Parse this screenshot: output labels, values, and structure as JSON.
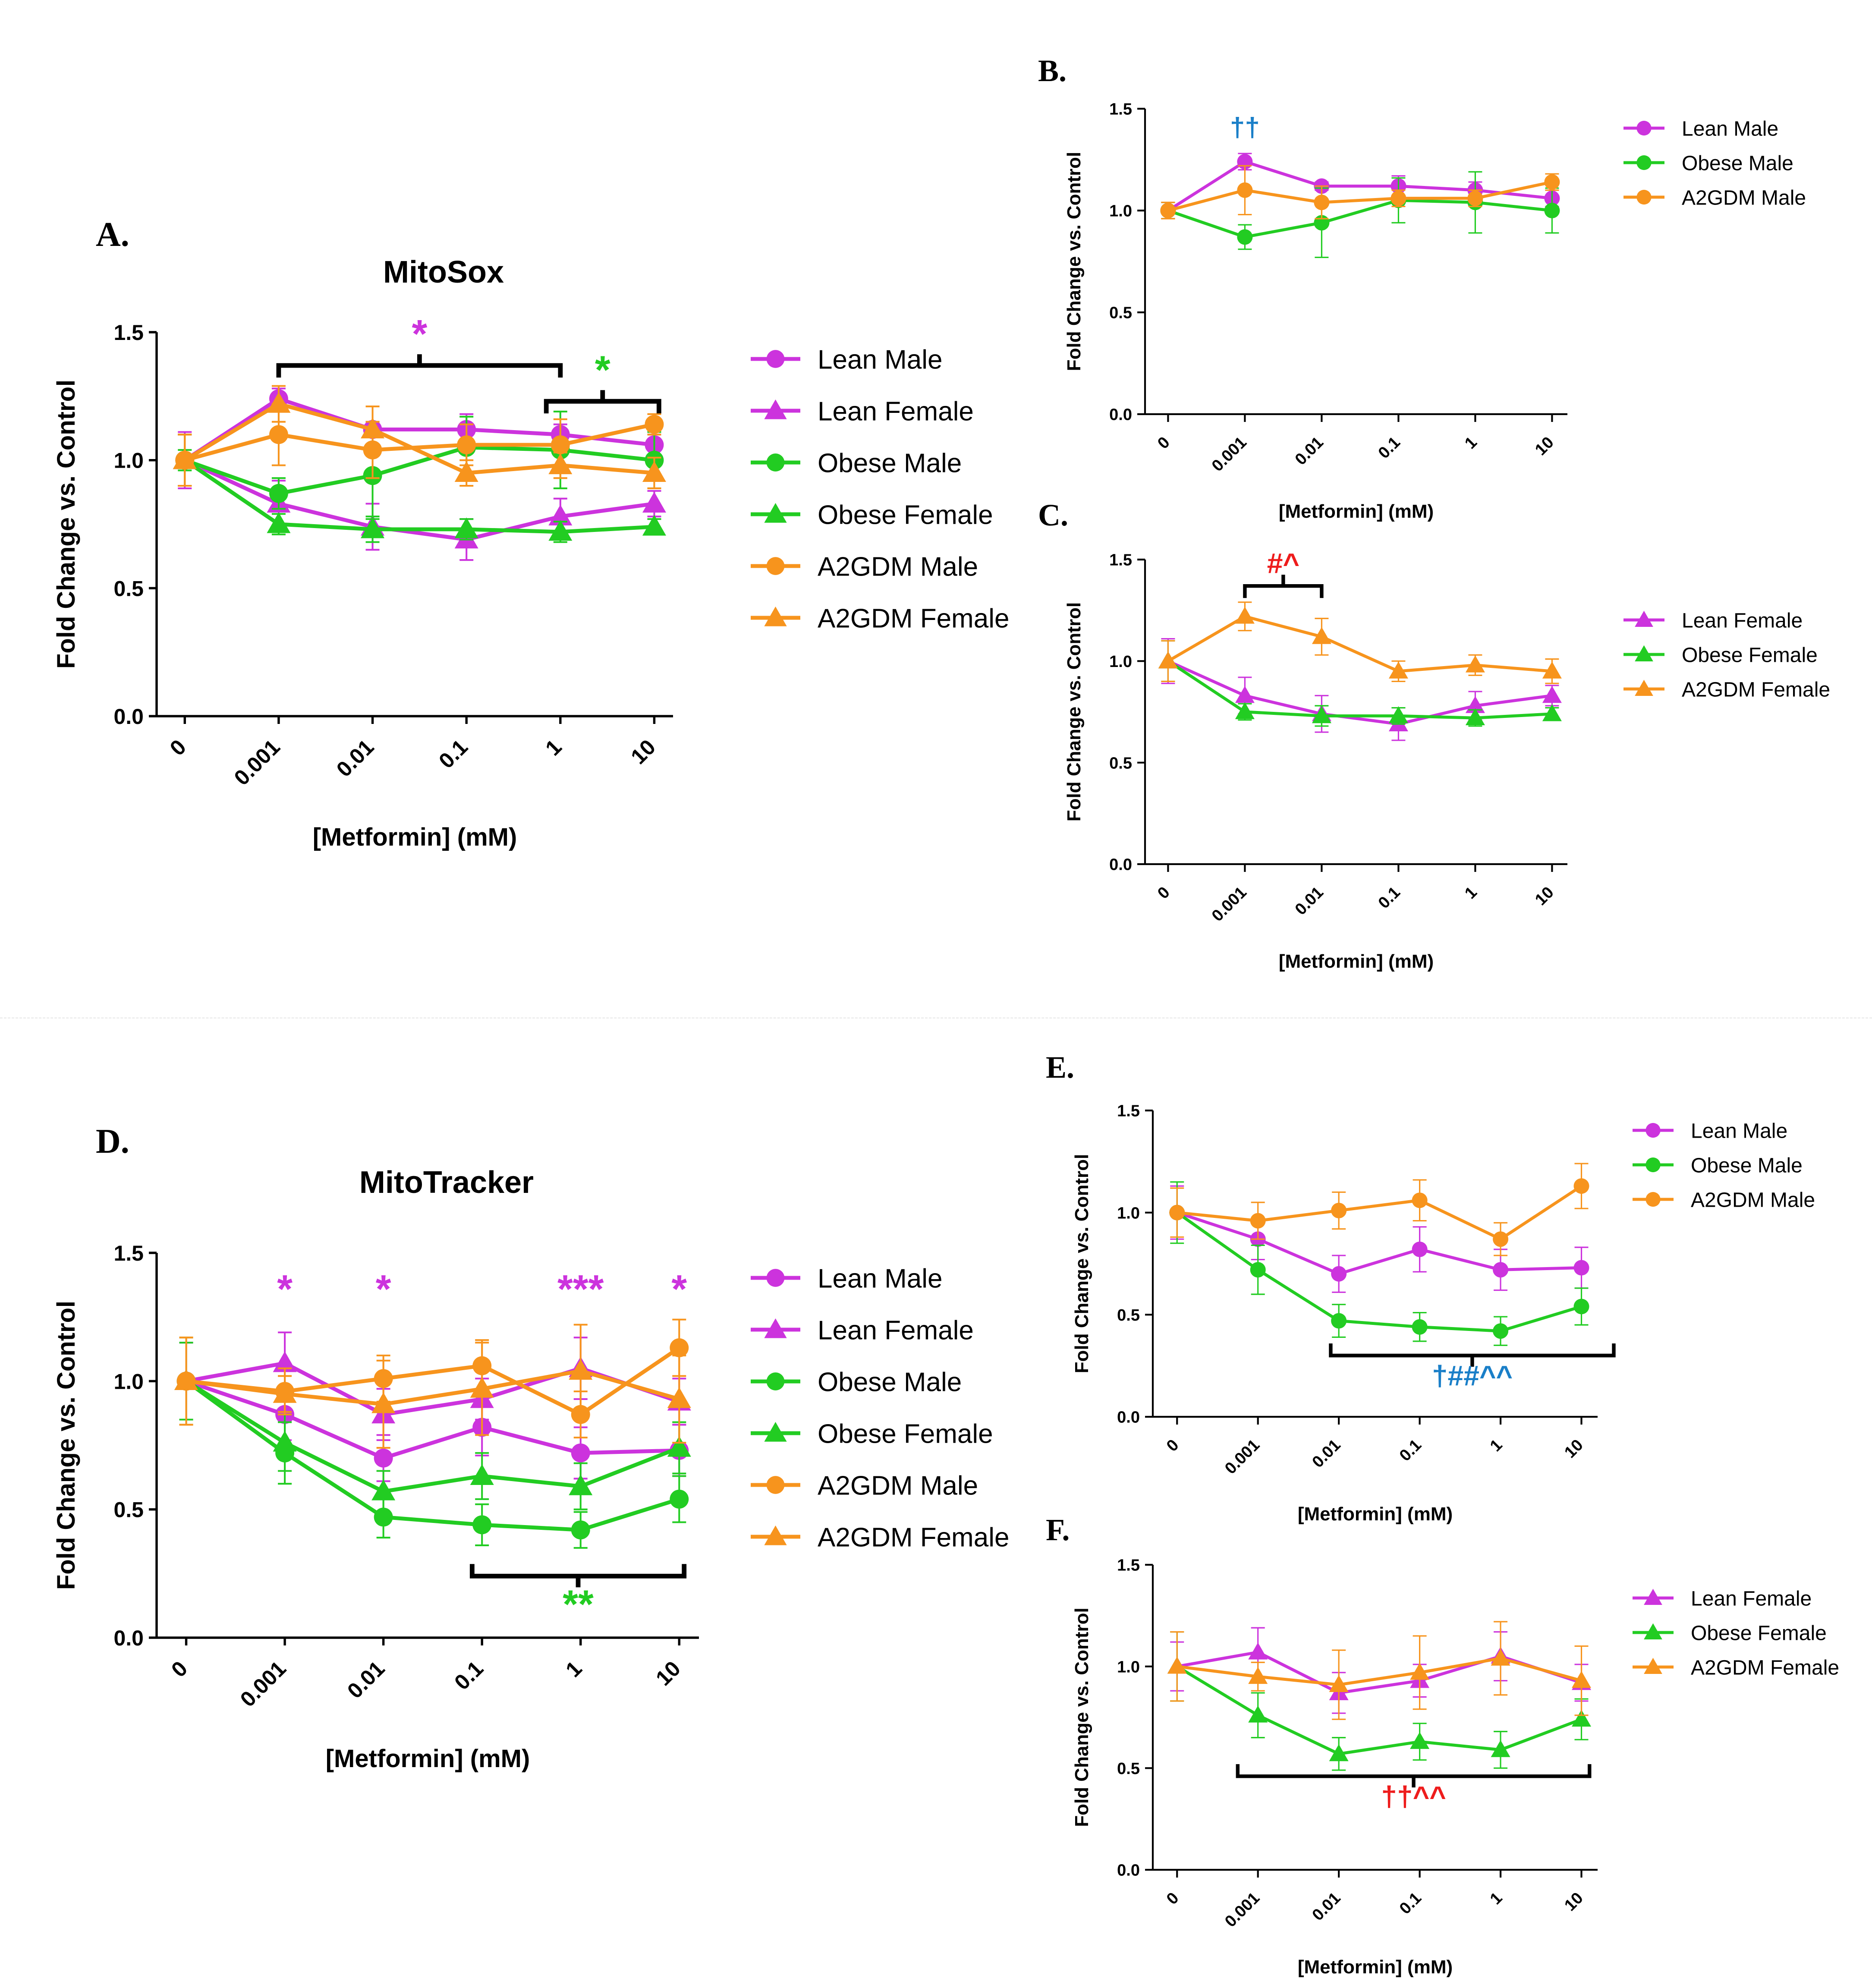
{
  "colors": {
    "lean": "#cc33dd",
    "obese": "#22cc22",
    "a2gdm": "#f7941d",
    "blue": "#1a7fc8",
    "red": "#ee1c1c",
    "axis": "#000000"
  },
  "x_categories": [
    "0",
    "0.001",
    "0.01",
    "0.1",
    "1",
    "10"
  ],
  "chart_data": [
    {
      "id": "A",
      "type": "line",
      "panel_label": "A.",
      "title": "MitoSox",
      "xlabel": "[Metformin] (mM)",
      "ylabel": "Fold Change vs. Control",
      "ylim": [
        0,
        1.5
      ],
      "yticks": [
        "0.0",
        "0.5",
        "1.0",
        "1.5"
      ],
      "legend_position": "right",
      "series": [
        {
          "name": "Lean Male",
          "color": "lean",
          "marker": "circle",
          "values": [
            1.0,
            1.24,
            1.12,
            1.12,
            1.1,
            1.06
          ],
          "errors": [
            0.1,
            0.04,
            0.03,
            0.06,
            0.04,
            0.04
          ]
        },
        {
          "name": "Lean Female",
          "color": "lean",
          "marker": "triangle",
          "values": [
            1.0,
            0.83,
            0.74,
            0.69,
            0.78,
            0.83
          ],
          "errors": [
            0.11,
            0.09,
            0.09,
            0.08,
            0.07,
            0.05
          ]
        },
        {
          "name": "Obese Male",
          "color": "obese",
          "marker": "circle",
          "values": [
            1.0,
            0.87,
            0.94,
            1.05,
            1.04,
            1.0
          ],
          "errors": [
            0.04,
            0.06,
            0.17,
            0.12,
            0.15,
            0.11
          ]
        },
        {
          "name": "Obese Female",
          "color": "obese",
          "marker": "triangle",
          "values": [
            1.0,
            0.75,
            0.73,
            0.73,
            0.72,
            0.74
          ],
          "errors": [
            0.1,
            0.04,
            0.05,
            0.04,
            0.04,
            0.03
          ]
        },
        {
          "name": "A2GDM Male",
          "color": "a2gdm",
          "marker": "circle",
          "values": [
            1.0,
            1.1,
            1.04,
            1.06,
            1.06,
            1.14
          ],
          "errors": [
            0.1,
            0.12,
            0.11,
            0.08,
            0.1,
            0.04
          ]
        },
        {
          "name": "A2GDM Female",
          "color": "a2gdm",
          "marker": "triangle",
          "values": [
            1.0,
            1.22,
            1.12,
            0.95,
            0.98,
            0.95
          ],
          "errors": [
            0.1,
            0.07,
            0.09,
            0.05,
            0.05,
            0.06
          ]
        }
      ],
      "brackets": [
        {
          "from": 1,
          "to": 4,
          "y": 1.37,
          "label": "*",
          "color": "lean"
        },
        {
          "from": 3.85,
          "to": 5.05,
          "y": 1.23,
          "label": "*",
          "color": "obese"
        }
      ],
      "annotations": []
    },
    {
      "id": "B",
      "type": "line",
      "panel_label": "B.",
      "title": "",
      "xlabel": "[Metformin] (mM)",
      "ylabel": "Fold Change vs. Control",
      "ylim": [
        0,
        1.5
      ],
      "yticks": [
        "0.0",
        "0.5",
        "1.0",
        "1.5"
      ],
      "legend_position": "right",
      "series": [
        {
          "name": "Lean Male",
          "color": "lean",
          "marker": "circle",
          "values": [
            1.0,
            1.24,
            1.12,
            1.12,
            1.1,
            1.06
          ],
          "errors": [
            0.04,
            0.04,
            0.02,
            0.05,
            0.04,
            0.04
          ]
        },
        {
          "name": "Obese Male",
          "color": "obese",
          "marker": "circle",
          "values": [
            1.0,
            0.87,
            0.94,
            1.05,
            1.04,
            1.0
          ],
          "errors": [
            0.04,
            0.06,
            0.17,
            0.11,
            0.15,
            0.11
          ]
        },
        {
          "name": "A2GDM Male",
          "color": "a2gdm",
          "marker": "circle",
          "values": [
            1.0,
            1.1,
            1.04,
            1.06,
            1.06,
            1.14
          ],
          "errors": [
            0.04,
            0.12,
            0.08,
            0.04,
            0.04,
            0.04
          ]
        }
      ],
      "brackets": [],
      "annotations": [
        {
          "x": 1,
          "y": 1.41,
          "label": "††",
          "color": "blue"
        }
      ]
    },
    {
      "id": "C",
      "type": "line",
      "panel_label": "C.",
      "title": "",
      "xlabel": "[Metformin] (mM)",
      "ylabel": "Fold Change vs. Control",
      "ylim": [
        0,
        1.5
      ],
      "yticks": [
        "0.0",
        "0.5",
        "1.0",
        "1.5"
      ],
      "legend_position": "right",
      "series": [
        {
          "name": "Lean Female",
          "color": "lean",
          "marker": "triangle",
          "values": [
            1.0,
            0.83,
            0.74,
            0.69,
            0.78,
            0.83
          ],
          "errors": [
            0.11,
            0.09,
            0.09,
            0.08,
            0.07,
            0.05
          ]
        },
        {
          "name": "Obese Female",
          "color": "obese",
          "marker": "triangle",
          "values": [
            1.0,
            0.75,
            0.73,
            0.73,
            0.72,
            0.74
          ],
          "errors": [
            0.1,
            0.04,
            0.05,
            0.04,
            0.04,
            0.03
          ]
        },
        {
          "name": "A2GDM Female",
          "color": "a2gdm",
          "marker": "triangle",
          "values": [
            1.0,
            1.22,
            1.12,
            0.95,
            0.98,
            0.95
          ],
          "errors": [
            0.1,
            0.07,
            0.09,
            0.05,
            0.05,
            0.06
          ]
        }
      ],
      "brackets": [
        {
          "from": 1,
          "to": 2,
          "y": 1.37,
          "label": "#^",
          "color": "red"
        }
      ],
      "annotations": []
    },
    {
      "id": "D",
      "type": "line",
      "panel_label": "D.",
      "title": "MitoTracker",
      "xlabel": "[Metformin] (mM)",
      "ylabel": "Fold Change vs. Control",
      "ylim": [
        0,
        1.5
      ],
      "yticks": [
        "0.0",
        "0.5",
        "1.0",
        "1.5"
      ],
      "legend_position": "right",
      "series": [
        {
          "name": "Lean Male",
          "color": "lean",
          "marker": "circle",
          "values": [
            1.0,
            0.87,
            0.7,
            0.82,
            0.72,
            0.73
          ],
          "errors": [
            0.15,
            0.1,
            0.09,
            0.11,
            0.1,
            0.1
          ]
        },
        {
          "name": "Lean Female",
          "color": "lean",
          "marker": "triangle",
          "values": [
            1.0,
            1.07,
            0.87,
            0.93,
            1.05,
            0.92
          ],
          "errors": [
            0.15,
            0.12,
            0.1,
            0.08,
            0.12,
            0.09
          ]
        },
        {
          "name": "Obese Male",
          "color": "obese",
          "marker": "circle",
          "values": [
            1.0,
            0.72,
            0.47,
            0.44,
            0.42,
            0.54
          ],
          "errors": [
            0.15,
            0.12,
            0.08,
            0.08,
            0.07,
            0.09
          ]
        },
        {
          "name": "Obese Female",
          "color": "obese",
          "marker": "triangle",
          "values": [
            1.0,
            0.76,
            0.57,
            0.63,
            0.59,
            0.74
          ],
          "errors": [
            0.17,
            0.11,
            0.08,
            0.09,
            0.09,
            0.1
          ]
        },
        {
          "name": "A2GDM Male",
          "color": "a2gdm",
          "marker": "circle",
          "values": [
            1.0,
            0.96,
            1.01,
            1.06,
            0.87,
            1.13
          ],
          "errors": [
            0.17,
            0.09,
            0.09,
            0.1,
            0.09,
            0.11
          ]
        },
        {
          "name": "A2GDM Female",
          "color": "a2gdm",
          "marker": "triangle",
          "values": [
            1.0,
            0.95,
            0.91,
            0.97,
            1.04,
            0.93
          ],
          "errors": [
            0.17,
            0.07,
            0.17,
            0.18,
            0.18,
            0.17
          ]
        }
      ],
      "brackets": [
        {
          "from": 2.9,
          "to": 5.05,
          "y": 0.24,
          "label": "**",
          "color": "obese",
          "down": true
        }
      ],
      "annotations": [
        {
          "x": 1,
          "y": 1.36,
          "label": "*",
          "color": "lean"
        },
        {
          "x": 2,
          "y": 1.36,
          "label": "*",
          "color": "lean"
        },
        {
          "x": 4,
          "y": 1.36,
          "label": "***",
          "color": "lean"
        },
        {
          "x": 5,
          "y": 1.36,
          "label": "*",
          "color": "lean"
        }
      ]
    },
    {
      "id": "E",
      "type": "line",
      "panel_label": "E.",
      "title": "",
      "xlabel": "[Metformin] (mM)",
      "ylabel": "Fold Change vs. Control",
      "ylim": [
        0,
        1.5
      ],
      "yticks": [
        "0.0",
        "0.5",
        "1.0",
        "1.5"
      ],
      "legend_position": "right",
      "series": [
        {
          "name": "Lean Male",
          "color": "lean",
          "marker": "circle",
          "values": [
            1.0,
            0.87,
            0.7,
            0.82,
            0.72,
            0.73
          ],
          "errors": [
            0.13,
            0.1,
            0.09,
            0.11,
            0.1,
            0.1
          ]
        },
        {
          "name": "Obese Male",
          "color": "obese",
          "marker": "circle",
          "values": [
            1.0,
            0.72,
            0.47,
            0.44,
            0.42,
            0.54
          ],
          "errors": [
            0.15,
            0.12,
            0.08,
            0.07,
            0.07,
            0.09
          ]
        },
        {
          "name": "A2GDM Male",
          "color": "a2gdm",
          "marker": "circle",
          "values": [
            1.0,
            0.96,
            1.01,
            1.06,
            0.87,
            1.13
          ],
          "errors": [
            0.12,
            0.09,
            0.09,
            0.1,
            0.08,
            0.11
          ]
        }
      ],
      "brackets": [
        {
          "from": 1.9,
          "to": 5.4,
          "y": 0.3,
          "label": "†##^^",
          "color": "blue",
          "down": true
        }
      ],
      "annotations": []
    },
    {
      "id": "F",
      "type": "line",
      "panel_label": "F.",
      "title": "",
      "xlabel": "[Metformin] (mM)",
      "ylabel": "Fold Change vs. Control",
      "ylim": [
        0,
        1.5
      ],
      "yticks": [
        "0.0",
        "0.5",
        "1.0",
        "1.5"
      ],
      "legend_position": "right",
      "series": [
        {
          "name": "Lean Female",
          "color": "lean",
          "marker": "triangle",
          "values": [
            1.0,
            1.07,
            0.87,
            0.93,
            1.05,
            0.92
          ],
          "errors": [
            0.12,
            0.12,
            0.1,
            0.08,
            0.12,
            0.09
          ]
        },
        {
          "name": "Obese Female",
          "color": "obese",
          "marker": "triangle",
          "values": [
            1.0,
            0.76,
            0.57,
            0.63,
            0.59,
            0.74
          ],
          "errors": [
            0.17,
            0.11,
            0.08,
            0.09,
            0.09,
            0.1
          ]
        },
        {
          "name": "A2GDM Female",
          "color": "a2gdm",
          "marker": "triangle",
          "values": [
            1.0,
            0.95,
            0.91,
            0.97,
            1.04,
            0.93
          ],
          "errors": [
            0.17,
            0.07,
            0.17,
            0.18,
            0.18,
            0.17
          ]
        }
      ],
      "brackets": [
        {
          "from": 0.75,
          "to": 5.1,
          "y": 0.46,
          "label": "††^^",
          "color": "red",
          "down": true
        }
      ],
      "annotations": []
    }
  ]
}
